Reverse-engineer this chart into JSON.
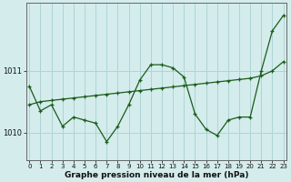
{
  "xlabel_label": "Graphe pression niveau de la mer (hPa)",
  "background_color": "#d4ecec",
  "grid_color": "#aed4d4",
  "line_color": "#1a5c1a",
  "hours": [
    0,
    1,
    2,
    3,
    4,
    5,
    6,
    7,
    8,
    9,
    10,
    11,
    12,
    13,
    14,
    15,
    16,
    17,
    18,
    19,
    20,
    21,
    22,
    23
  ],
  "pressure": [
    1010.75,
    1010.35,
    1010.45,
    1010.1,
    1010.25,
    1010.2,
    1010.15,
    1009.85,
    1010.1,
    1010.45,
    1010.85,
    1011.1,
    1011.1,
    1011.05,
    1010.9,
    1010.3,
    1010.05,
    1009.95,
    1010.2,
    1010.25,
    1010.25,
    1011.0,
    1011.65,
    1011.9
  ],
  "trend": [
    1010.45,
    1010.5,
    1010.52,
    1010.54,
    1010.56,
    1010.58,
    1010.6,
    1010.62,
    1010.64,
    1010.66,
    1010.68,
    1010.7,
    1010.72,
    1010.74,
    1010.76,
    1010.78,
    1010.8,
    1010.82,
    1010.84,
    1010.86,
    1010.88,
    1010.92,
    1011.0,
    1011.15
  ],
  "ylim_min": 1009.55,
  "ylim_max": 1012.1,
  "yticks": [
    1010,
    1011
  ],
  "ytick_labels": [
    "1010",
    "1011"
  ],
  "xticks": [
    0,
    1,
    2,
    3,
    4,
    5,
    6,
    7,
    8,
    9,
    10,
    11,
    12,
    13,
    14,
    15,
    16,
    17,
    18,
    19,
    20,
    21,
    22,
    23
  ],
  "marker_size": 3,
  "line_width": 0.9,
  "font_size_x": 5.0,
  "font_size_y": 6.0,
  "font_size_label": 6.5
}
